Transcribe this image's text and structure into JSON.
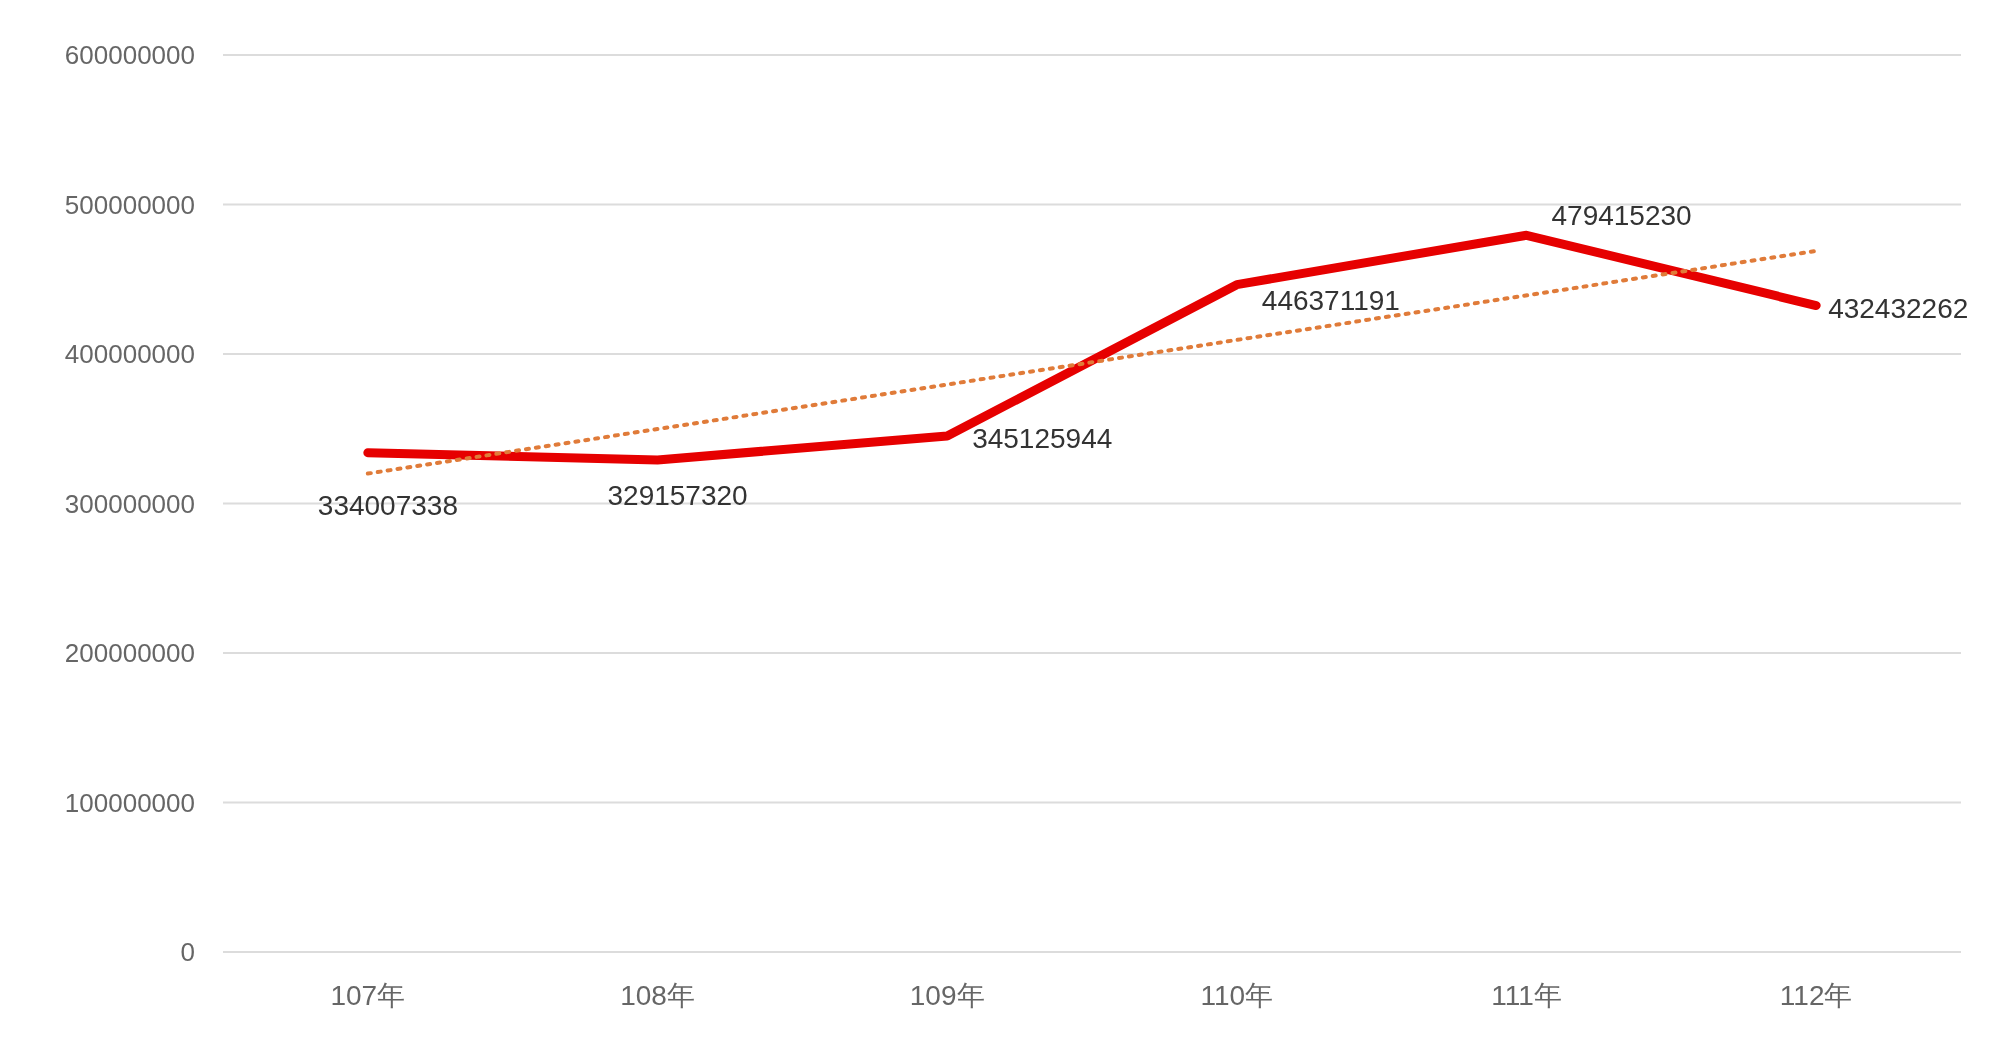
{
  "chart_data": {
    "type": "line",
    "categories": [
      "107年",
      "108年",
      "109年",
      "110年",
      "111年",
      "112年"
    ],
    "series": [
      {
        "color": "#e60000",
        "values": [
          334007338,
          329157320,
          345125944,
          446371191,
          479415230,
          432432262
        ],
        "value_labels": [
          "334007338",
          "329157320",
          "345125944",
          "446371191",
          "479415230",
          "432432262"
        ]
      },
      {
        "type": "line",
        "color": "#e07b39",
        "line_style": "dotted",
        "x": [
          "107年",
          "112年"
        ],
        "values": [
          320000000,
          469000000
        ]
      }
    ],
    "ylim": [
      0,
      600000000
    ],
    "yticks": [
      0,
      100000000,
      200000000,
      300000000,
      400000000,
      500000000,
      600000000
    ],
    "grid": "y",
    "marker": "none",
    "line_style": "solid"
  }
}
